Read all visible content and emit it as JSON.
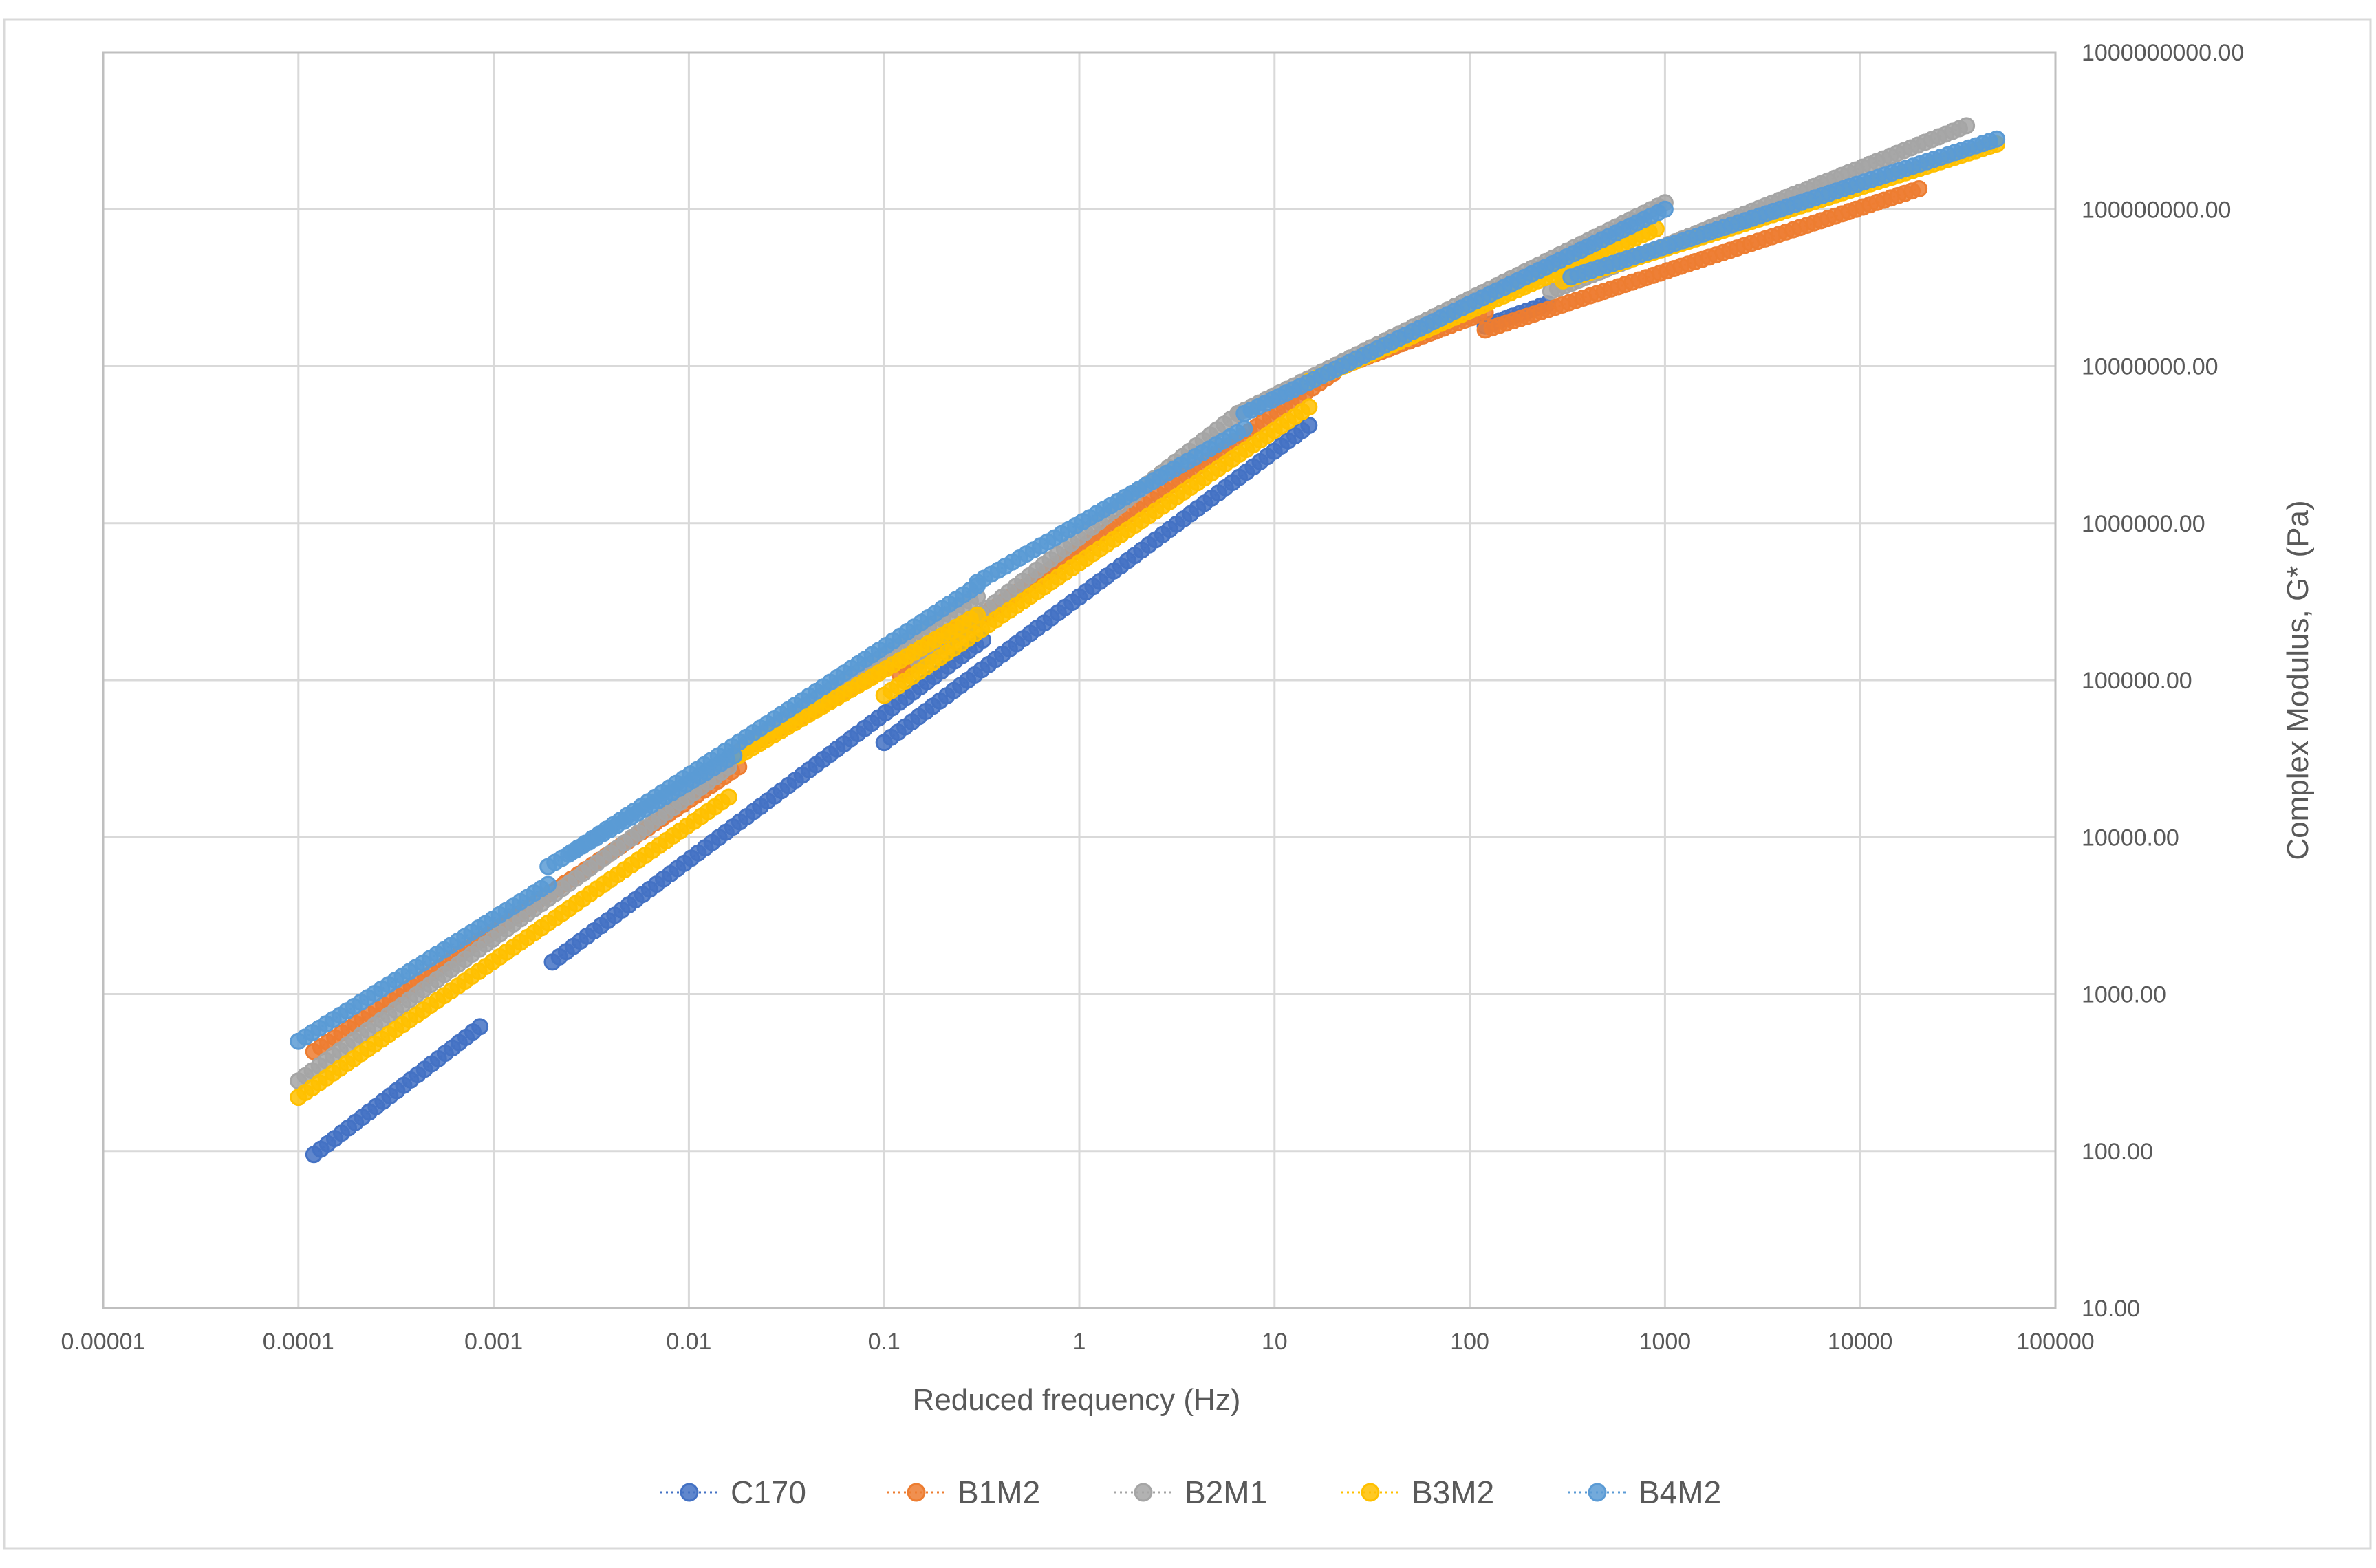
{
  "chart_data": {
    "type": "scatter",
    "xlabel": "Reduced frequency (Hz)",
    "ylabel": "Complex Modulus, G* (Pa)",
    "x_scale": "log",
    "y_scale": "log",
    "xlim": [
      1e-05,
      100000
    ],
    "ylim": [
      10,
      1000000000
    ],
    "grid": true,
    "legend_position": "bottom",
    "x_tick_labels": [
      "0.00001",
      "0.0001",
      "0.001",
      "0.01",
      "0.1",
      "1",
      "10",
      "100",
      "1000",
      "10000",
      "100000"
    ],
    "y_tick_labels": [
      "10.00",
      "100.00",
      "1000.00",
      "10000.00",
      "100000.00",
      "1000000.00",
      "10000000.00",
      "100000000.00",
      "1000000000.00"
    ],
    "series": [
      {
        "name": "C170",
        "color": "#4472C4",
        "segments": [
          {
            "x_range": [
              0.00012,
              0.00085
            ],
            "y_range": [
              95,
              620
            ]
          },
          {
            "x_range": [
              0.002,
              0.32
            ],
            "y_range": [
              1600,
              180000
            ]
          },
          {
            "x_range": [
              0.1,
              15
            ],
            "y_range": [
              40000,
              4200000
            ]
          },
          {
            "x_range": [
              120,
              250
            ],
            "y_range": [
              18000000,
              25000000
            ]
          }
        ]
      },
      {
        "name": "B1M2",
        "color": "#ED7D31",
        "segments": [
          {
            "x_range": [
              0.00012,
              0.018
            ],
            "y_range": [
              430,
              28000
            ]
          },
          {
            "x_range": [
              0.018,
              0.35
            ],
            "y_range": [
              35000,
              280000
            ]
          },
          {
            "x_range": [
              0.12,
              20
            ],
            "y_range": [
              110000,
              9000000
            ]
          },
          {
            "x_range": [
              20,
              120
            ],
            "y_range": [
              9500000,
              22000000
            ]
          },
          {
            "x_range": [
              120,
              20000
            ],
            "y_range": [
              17000000,
              135000000
            ]
          }
        ]
      },
      {
        "name": "B2M1",
        "color": "#A5A5A5",
        "segments": [
          {
            "x_range": [
              0.0001,
              0.016
            ],
            "y_range": [
              280,
              28000
            ]
          },
          {
            "x_range": [
              0.02,
              0.3
            ],
            "y_range": [
              40000,
              340000
            ]
          },
          {
            "x_range": [
              0.15,
              6.5
            ],
            "y_range": [
              130000,
              5000000
            ]
          },
          {
            "x_range": [
              6.5,
              1000
            ],
            "y_range": [
              5000000,
              110000000
            ]
          },
          {
            "x_range": [
              260,
              35000
            ],
            "y_range": [
              30000000,
              340000000
            ]
          }
        ]
      },
      {
        "name": "B3M2",
        "color": "#FFC000",
        "segments": [
          {
            "x_range": [
              0.0001,
              0.016
            ],
            "y_range": [
              220,
              18000
            ]
          },
          {
            "x_range": [
              0.018,
              0.3
            ],
            "y_range": [
              33000,
              260000
            ]
          },
          {
            "x_range": [
              0.1,
              15
            ],
            "y_range": [
              80000,
              5500000
            ]
          },
          {
            "x_range": [
              15,
              900
            ],
            "y_range": [
              8000000,
              75000000
            ]
          },
          {
            "x_range": [
              300,
              50000
            ],
            "y_range": [
              35000000,
              260000000
            ]
          }
        ]
      },
      {
        "name": "B4M2",
        "color": "#5B9BD5",
        "segments": [
          {
            "x_range": [
              0.0001,
              0.0019
            ],
            "y_range": [
              500,
              5000
            ]
          },
          {
            "x_range": [
              0.0019,
              0.017
            ],
            "y_range": [
              6500,
              33000
            ]
          },
          {
            "x_range": [
              0.0025,
              0.3
            ],
            "y_range": [
              8000,
              400000
            ]
          },
          {
            "x_range": [
              0.3,
              7
            ],
            "y_range": [
              420000,
              4000000
            ]
          },
          {
            "x_range": [
              7,
              1000
            ],
            "y_range": [
              5000000,
              100000000
            ]
          },
          {
            "x_range": [
              330,
              50000
            ],
            "y_range": [
              37000000,
              280000000
            ]
          }
        ]
      }
    ]
  }
}
